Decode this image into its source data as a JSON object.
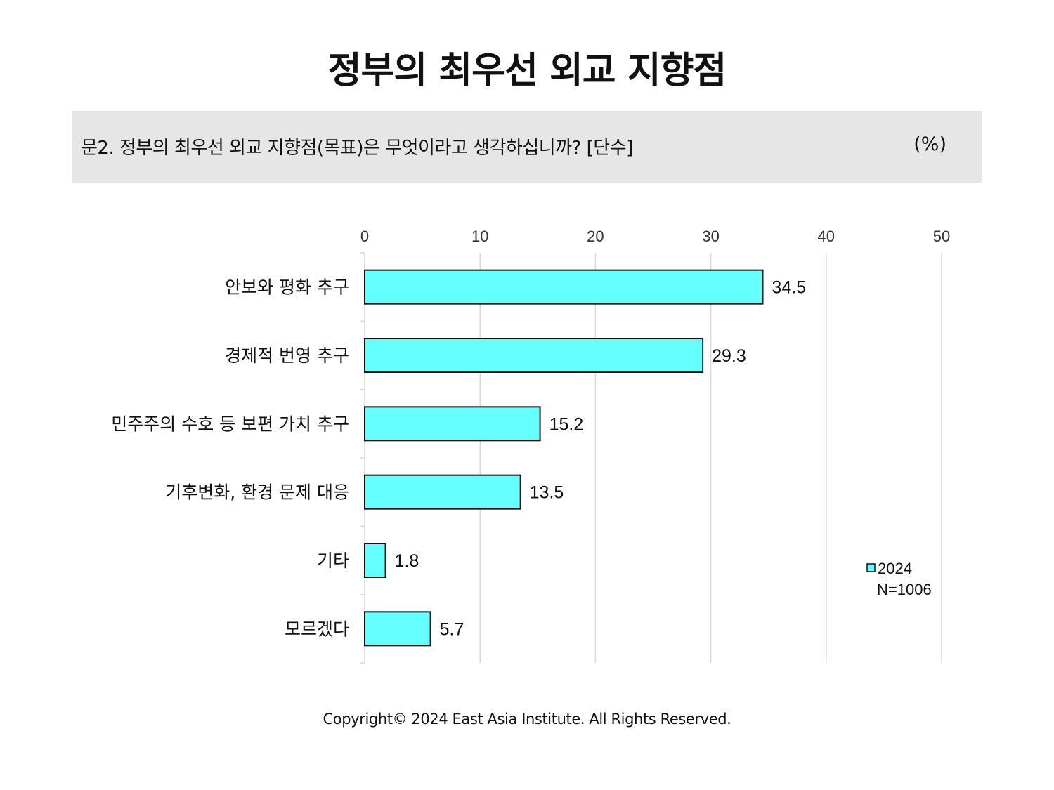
{
  "title": "정부의 최우선 외교 지향점",
  "question": "문2. 정부의 최우선 외교 지향점(목표)은 무엇이라고 생각하십니까? [단수]",
  "unit": "(%)",
  "footer": "Copyright© 2024 East Asia Institute. All Rights Reserved.",
  "colors": {
    "bar": "#66ffff",
    "bar_border": "#111111",
    "grid": "#d9d9d9"
  },
  "chart_data": {
    "type": "bar",
    "orientation": "horizontal",
    "categories": [
      "안보와 평화 추구",
      "경제적 번영 추구",
      "민주주의 수호 등 보편 가치 추구",
      "기후변화, 환경 문제 대응",
      "기타",
      "모르겠다"
    ],
    "series": [
      {
        "name": "2024",
        "values": [
          34.5,
          29.3,
          15.2,
          13.5,
          1.8,
          5.7
        ]
      }
    ],
    "data_labels": [
      "34.5",
      "29.3",
      "15.2",
      "13.5",
      "1.8",
      "5.7"
    ],
    "xlim": [
      0,
      50
    ],
    "ticks": [
      0,
      10,
      20,
      30,
      40,
      50
    ],
    "tick_labels": [
      "0",
      "10",
      "20",
      "30",
      "40",
      "50"
    ],
    "grid": true,
    "legend": {
      "position": "right",
      "label": "2024",
      "note": "N=1006"
    }
  }
}
